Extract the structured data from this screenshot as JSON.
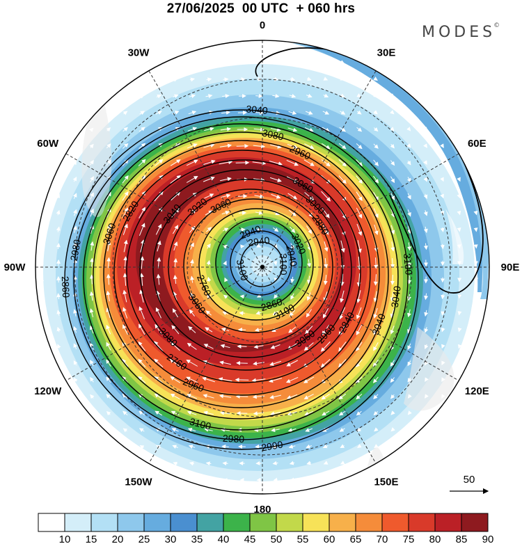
{
  "header": {
    "title": "27/06/2025  00 UTC  + 060 hrs",
    "brand": "MODES",
    "brand_mark": "©"
  },
  "map": {
    "projection": "south-polar-stereographic",
    "longitude_labels": [
      {
        "text": "0",
        "lon": 0
      },
      {
        "text": "30E",
        "lon": 30
      },
      {
        "text": "60E",
        "lon": 60
      },
      {
        "text": "90E",
        "lon": 90
      },
      {
        "text": "120E",
        "lon": 120
      },
      {
        "text": "150E",
        "lon": 150
      },
      {
        "text": "180",
        "lon": 180
      },
      {
        "text": "150W",
        "lon": -150
      },
      {
        "text": "120W",
        "lon": -120
      },
      {
        "text": "90W",
        "lon": -90
      },
      {
        "text": "60W",
        "lon": -60
      },
      {
        "text": "30W",
        "lon": -30
      }
    ],
    "contour_labels": [
      "3100",
      "3080",
      "3040",
      "3050",
      "2980",
      "2880",
      "3100",
      "3060",
      "3040",
      "2760",
      "2960",
      "2860",
      "2820",
      "2940",
      "2760",
      "2940",
      "2960",
      "2860",
      "3000",
      "2980",
      "3020",
      "3040",
      "3060",
      "3080",
      "3100",
      "3060",
      "3020",
      "2960",
      "2940",
      "2840",
      "3100",
      "3060",
      "2990",
      "3040",
      "3100"
    ],
    "wind_scale": {
      "value": "50"
    }
  },
  "colorbar": {
    "levels": [
      "10",
      "15",
      "20",
      "25",
      "30",
      "35",
      "40",
      "45",
      "50",
      "55",
      "60",
      "65",
      "70",
      "75",
      "80",
      "85",
      "90"
    ],
    "colors": [
      "#ffffff",
      "#d4eef9",
      "#b3e0f5",
      "#8ec8ec",
      "#66acdf",
      "#4a8fd0",
      "#43a3a3",
      "#3cb34a",
      "#7fc545",
      "#c2d94a",
      "#f7e258",
      "#f7b04a",
      "#f58c3a",
      "#ef5a2d",
      "#d93a2a",
      "#bb2026",
      "#8e1a1f"
    ]
  }
}
